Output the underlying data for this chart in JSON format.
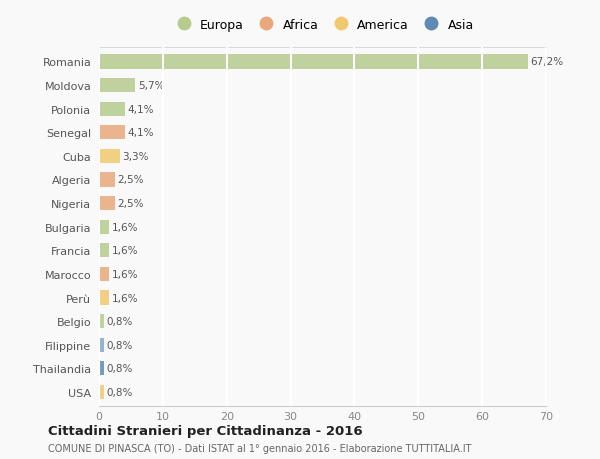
{
  "countries": [
    "Romania",
    "Moldova",
    "Polonia",
    "Senegal",
    "Cuba",
    "Algeria",
    "Nigeria",
    "Bulgaria",
    "Francia",
    "Marocco",
    "Perù",
    "Belgio",
    "Filippine",
    "Thailandia",
    "USA"
  ],
  "values": [
    67.2,
    5.7,
    4.1,
    4.1,
    3.3,
    2.5,
    2.5,
    1.6,
    1.6,
    1.6,
    1.6,
    0.8,
    0.8,
    0.8,
    0.8
  ],
  "labels": [
    "67,2%",
    "5,7%",
    "4,1%",
    "4,1%",
    "3,3%",
    "2,5%",
    "2,5%",
    "1,6%",
    "1,6%",
    "1,6%",
    "1,6%",
    "0,8%",
    "0,8%",
    "0,8%",
    "0,8%"
  ],
  "colors": [
    "#b5cc8e",
    "#b5cc8e",
    "#b5cc8e",
    "#e8a87c",
    "#f0c96e",
    "#e8a87c",
    "#e8a87c",
    "#b5cc8e",
    "#b5cc8e",
    "#e8a87c",
    "#f0c96e",
    "#b5cc8e",
    "#7fa8c9",
    "#5e8ab4",
    "#f0c96e"
  ],
  "legend_labels": [
    "Europa",
    "Africa",
    "America",
    "Asia"
  ],
  "legend_colors": [
    "#b5cc8e",
    "#e8a87c",
    "#f0c96e",
    "#5e8ab4"
  ],
  "xlim": [
    0,
    70
  ],
  "xticks": [
    0,
    10,
    20,
    30,
    40,
    50,
    60,
    70
  ],
  "title": "Cittadini Stranieri per Cittadinanza - 2016",
  "subtitle": "COMUNE DI PINASCA (TO) - Dati ISTAT al 1° gennaio 2016 - Elaborazione TUTTITALIA.IT",
  "bg_color": "#f9f9f9",
  "grid_color": "#ffffff",
  "bar_height": 0.6
}
